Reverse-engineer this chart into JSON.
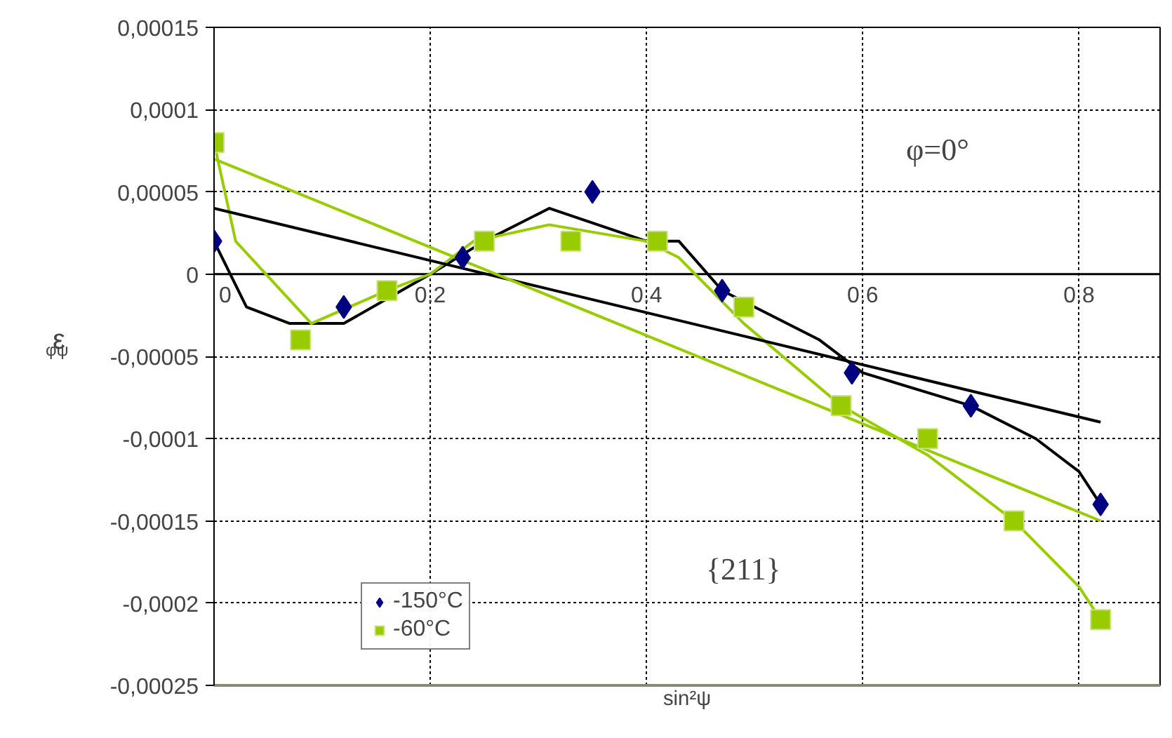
{
  "chart_data": {
    "type": "scatter",
    "xlabel": "sin²ψ",
    "ylabel": "ε$_{φψ}$",
    "xlim": [
      0,
      0.875
    ],
    "xticks": [
      0,
      0.2,
      0.4,
      0.6,
      0.8
    ],
    "ylim": [
      -0.00025,
      0.00015
    ],
    "yticks": [
      {
        "value": -0.00025,
        "label": "-0,00025"
      },
      {
        "value": -0.0002,
        "label": "-0,0002"
      },
      {
        "value": -0.00015,
        "label": "-0,00015"
      },
      {
        "value": -0.0001,
        "label": "-0,0001"
      },
      {
        "value": -5e-05,
        "label": "-0,00005"
      },
      0,
      {
        "value": 5e-05,
        "label": "0,00005"
      },
      {
        "value": 0.0001,
        "label": "0,0001"
      },
      {
        "value": 0.00015,
        "label": "0,00015"
      }
    ],
    "grid": true,
    "legend": "bottom left",
    "annotations": [
      "φ=0°",
      "{211}"
    ],
    "series": [
      {
        "type": "line",
        "color": "#000000",
        "marker": "none",
        "x": [
          0,
          0.03,
          0.07,
          0.12,
          0.2,
          0.25,
          0.31,
          0.4,
          0.43,
          0.47,
          0.56,
          0.6,
          0.7,
          0.76,
          0.8,
          0.82
        ],
        "values": [
          2e-05,
          -2e-05,
          -3e-05,
          -3e-05,
          0,
          2e-05,
          4e-05,
          2e-05,
          2e-05,
          -1e-05,
          -4e-05,
          -6e-05,
          -8e-05,
          -0.0001,
          -0.00012,
          -0.00014
        ]
      },
      {
        "type": "line",
        "color": "#99cc00",
        "marker": "none",
        "x": [
          0,
          0.02,
          0.09,
          0.16,
          0.2,
          0.24,
          0.31,
          0.4,
          0.43,
          0.49,
          0.58,
          0.66,
          0.74,
          0.8,
          0.82
        ],
        "values": [
          8e-05,
          2e-05,
          -3e-05,
          -1e-05,
          0,
          2e-05,
          3e-05,
          2e-05,
          1e-05,
          -3e-05,
          -8e-05,
          -0.00011,
          -0.00015,
          -0.00019,
          -0.00021
        ]
      },
      {
        "type": "line",
        "color": "#000000",
        "marker": "none",
        "x": [
          0,
          0.82
        ],
        "values": [
          4e-05,
          -9e-05
        ]
      },
      {
        "type": "line",
        "color": "#99cc00",
        "marker": "none",
        "x": [
          0,
          0.82
        ],
        "values": [
          7e-05,
          -0.00015
        ]
      },
      {
        "name": "-150°C",
        "color": "#000080",
        "marker": "diamond",
        "x": [
          0,
          0.12,
          0.23,
          0.35,
          0.47,
          0.59,
          0.7,
          0.82
        ],
        "values": [
          2e-05,
          -2e-05,
          1e-05,
          5e-05,
          -1e-05,
          -6e-05,
          -8e-05,
          -0.00014
        ]
      },
      {
        "name": "-60°C",
        "color": "#99cc00",
        "marker": "square",
        "x": [
          0,
          0.08,
          0.16,
          0.25,
          0.33,
          0.41,
          0.49,
          0.58,
          0.66,
          0.74,
          0.82
        ],
        "values": [
          8e-05,
          -4e-05,
          -1e-05,
          2e-05,
          2e-05,
          2e-05,
          -2e-05,
          -8e-05,
          -0.0001,
          -0.00015,
          -0.00021
        ]
      }
    ]
  }
}
